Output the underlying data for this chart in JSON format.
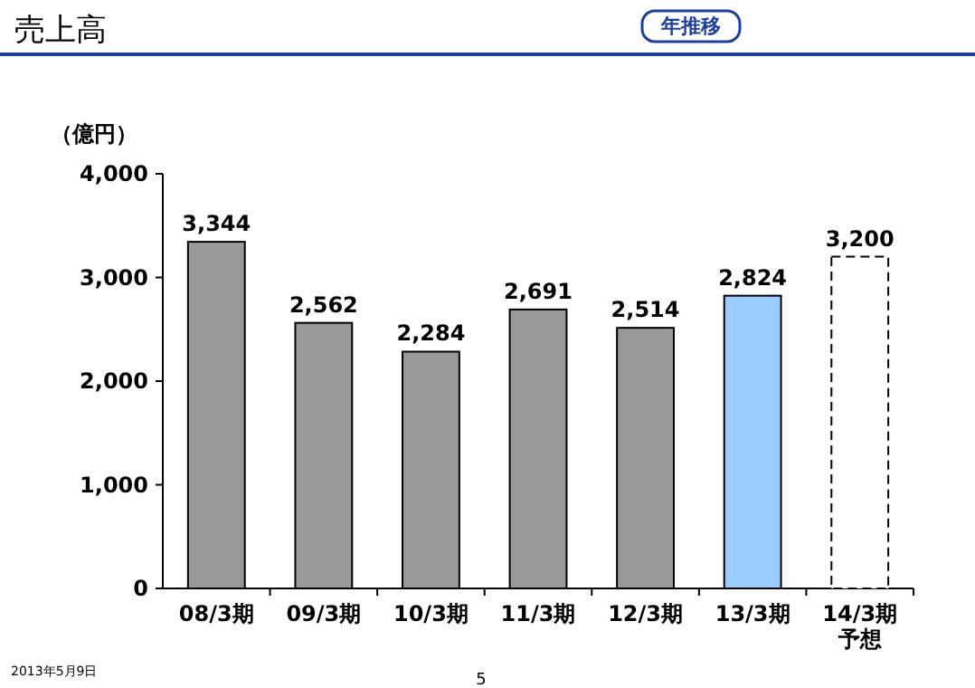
{
  "chart_data": {
    "type": "bar",
    "title": "売上高",
    "ylabel": "（億円）",
    "stacked": true,
    "grid": false,
    "categories": [
      "08/3期",
      "09/3期",
      "10/3期",
      "11/3期",
      "12/3期",
      "13/3期",
      "14/3期予想"
    ],
    "series": [
      {
        "color": "#999999",
        "line_style": "solid",
        "values": [
          3344,
          2562,
          2284,
          2691,
          2514,
          null,
          null
        ],
        "value_labels": [
          "3,344",
          "2,562",
          "2,284",
          "2,691",
          "2,514",
          null,
          null
        ]
      },
      {
        "color": "#99ccff",
        "line_style": "solid",
        "values": [
          null,
          null,
          null,
          null,
          null,
          2824,
          null
        ],
        "value_labels": [
          null,
          null,
          null,
          null,
          null,
          "2,824",
          null
        ]
      },
      {
        "color": "#ffffff",
        "line_style": "dashed",
        "values": [
          null,
          null,
          null,
          null,
          null,
          null,
          3200
        ],
        "value_labels": [
          null,
          null,
          null,
          null,
          null,
          null,
          "3,200"
        ]
      }
    ],
    "ylim": [
      0,
      4000
    ],
    "yticks": [
      0,
      {
        "value": 1000,
        "label": "1,000"
      },
      {
        "value": 2000,
        "label": "2,000"
      },
      {
        "value": 3000,
        "label": "3,000"
      },
      {
        "value": 4000,
        "label": "4,000"
      }
    ],
    "annotations": [
      "年推移",
      "2013年5月9日",
      "5"
    ]
  }
}
